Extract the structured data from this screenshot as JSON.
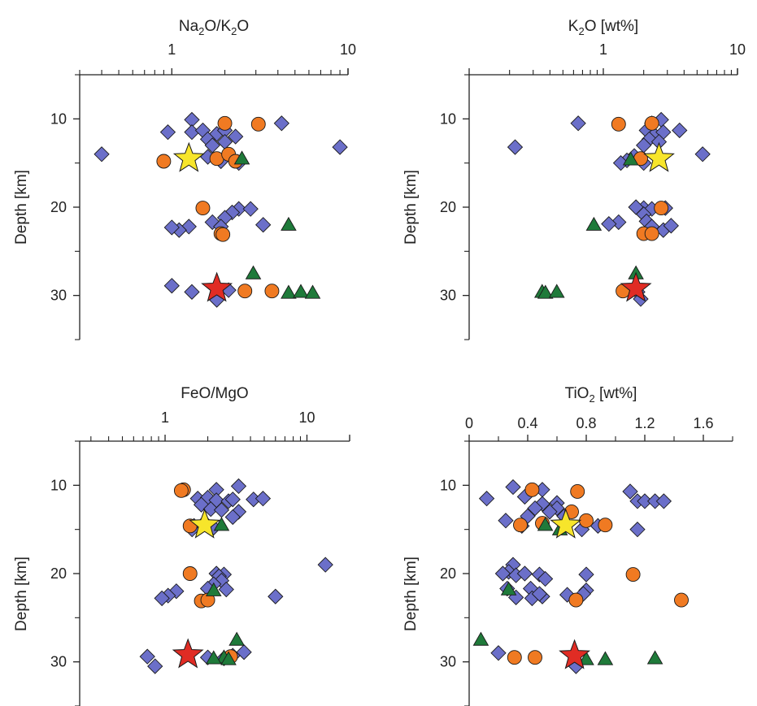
{
  "colors": {
    "diamond": "#6b6fc9",
    "circle": "#f07a22",
    "triangle": "#1f7a3a",
    "star_yellow": "#f7e52b",
    "star_red": "#e02c24",
    "outline": "#1a1a1a"
  },
  "chart_data": [
    {
      "type": "scatter",
      "title": {
        "pre": "Na",
        "sub1": "2",
        "mid": "O/K",
        "sub2": "2",
        "post": "O"
      },
      "ylabel": "Depth [km]",
      "xscale": "log",
      "xlim": [
        0.3,
        10
      ],
      "ylim": [
        35,
        5
      ],
      "xticks": [
        1,
        10
      ],
      "xtick_labels": [
        "1",
        "10"
      ],
      "yticks": [
        10,
        20,
        30
      ],
      "ytick_labels": [
        "10",
        "20",
        "30"
      ],
      "series": [
        {
          "marker": "diamond",
          "points": [
            [
              1.3,
              10.1
            ],
            [
              0.95,
              11.5
            ],
            [
              1.3,
              11.5
            ],
            [
              1.5,
              11.3
            ],
            [
              1.8,
              11.7
            ],
            [
              2.0,
              11.3
            ],
            [
              1.6,
              12.3
            ],
            [
              1.7,
              13
            ],
            [
              2.0,
              12.6
            ],
            [
              2.3,
              12
            ],
            [
              4.2,
              10.5
            ],
            [
              9.0,
              13.2
            ],
            [
              0.4,
              14
            ],
            [
              1.6,
              14.3
            ],
            [
              1.9,
              14.8
            ],
            [
              2.4,
              15
            ],
            [
              2.4,
              20.2
            ],
            [
              2.8,
              20.2
            ],
            [
              2.2,
              20.6
            ],
            [
              2.0,
              21.2
            ],
            [
              1.7,
              21.7
            ],
            [
              1.9,
              22.2
            ],
            [
              1.25,
              22.2
            ],
            [
              1.1,
              22.6
            ],
            [
              1.0,
              22.3
            ],
            [
              3.3,
              22
            ],
            [
              1.0,
              28.9
            ],
            [
              1.3,
              29.6
            ],
            [
              2.1,
              29.4
            ],
            [
              1.8,
              30.5
            ]
          ]
        },
        {
          "marker": "circle",
          "points": [
            [
              2.0,
              10.5
            ],
            [
              3.1,
              10.6
            ],
            [
              0.9,
              14.8
            ],
            [
              1.8,
              14.5
            ],
            [
              2.1,
              14
            ],
            [
              2.3,
              14.8
            ],
            [
              1.5,
              20.1
            ],
            [
              1.9,
              23
            ],
            [
              1.95,
              23.1
            ],
            [
              2.6,
              29.5
            ],
            [
              3.7,
              29.5
            ]
          ]
        },
        {
          "marker": "triangle",
          "points": [
            [
              2.5,
              14.5
            ],
            [
              4.6,
              22
            ],
            [
              2.9,
              27.5
            ],
            [
              4.6,
              29.7
            ],
            [
              5.4,
              29.6
            ],
            [
              6.3,
              29.7
            ]
          ]
        },
        {
          "marker": "star-yellow",
          "points": [
            [
              1.25,
              14.5
            ]
          ]
        },
        {
          "marker": "star-red",
          "points": [
            [
              1.8,
              29.2
            ]
          ]
        }
      ]
    },
    {
      "type": "scatter",
      "title": {
        "pre": "K",
        "sub1": "2",
        "mid": "O [wt%]",
        "sub2": "",
        "post": ""
      },
      "ylabel": "Depth [km]",
      "xscale": "log",
      "xlim": [
        0.1,
        10
      ],
      "ylim": [
        35,
        5
      ],
      "xticks": [
        1,
        10
      ],
      "xtick_labels": [
        "1",
        "10"
      ],
      "yticks": [
        10,
        20,
        30
      ],
      "ytick_labels": [
        "10",
        "20",
        "30"
      ],
      "series": [
        {
          "marker": "diamond",
          "points": [
            [
              0.65,
              10.5
            ],
            [
              2.3,
              10.5
            ],
            [
              2.7,
              10.1
            ],
            [
              2.1,
              11.3
            ],
            [
              2.4,
              11.8
            ],
            [
              2.8,
              11.5
            ],
            [
              3.7,
              11.3
            ],
            [
              2.2,
              12.3
            ],
            [
              2.6,
              12.6
            ],
            [
              2.0,
              13
            ],
            [
              0.22,
              13.2
            ],
            [
              5.5,
              14
            ],
            [
              1.7,
              14.2
            ],
            [
              1.5,
              14.7
            ],
            [
              1.35,
              15
            ],
            [
              2.0,
              15
            ],
            [
              2.0,
              20.1
            ],
            [
              1.75,
              20
            ],
            [
              2.3,
              20.2
            ],
            [
              2.9,
              20.1
            ],
            [
              2.0,
              20.8
            ],
            [
              2.1,
              21.6
            ],
            [
              2.3,
              22.2
            ],
            [
              2.8,
              22.6
            ],
            [
              3.2,
              22.1
            ],
            [
              1.3,
              21.7
            ],
            [
              1.1,
              21.9
            ],
            [
              1.8,
              29.6
            ],
            [
              1.9,
              30.4
            ]
          ]
        },
        {
          "marker": "circle",
          "points": [
            [
              1.3,
              10.6
            ],
            [
              2.3,
              10.5
            ],
            [
              1.9,
              14.5
            ],
            [
              2.7,
              20.1
            ],
            [
              2.0,
              23
            ],
            [
              2.3,
              23
            ],
            [
              1.4,
              29.5
            ]
          ]
        },
        {
          "marker": "triangle",
          "points": [
            [
              1.6,
              14.6
            ],
            [
              0.85,
              22
            ],
            [
              1.75,
              27.5
            ],
            [
              0.35,
              29.6
            ],
            [
              0.37,
              29.7
            ],
            [
              0.45,
              29.6
            ]
          ]
        },
        {
          "marker": "star-yellow",
          "points": [
            [
              2.6,
              14.5
            ]
          ]
        },
        {
          "marker": "star-red",
          "points": [
            [
              1.75,
              29.2
            ]
          ]
        }
      ]
    },
    {
      "type": "scatter",
      "title": {
        "pre": "FeO/MgO",
        "sub1": "",
        "mid": "",
        "sub2": "",
        "post": ""
      },
      "ylabel": "Depth [km]",
      "xscale": "log",
      "xlim": [
        0.25,
        20
      ],
      "ylim": [
        35,
        5
      ],
      "xticks": [
        1,
        10
      ],
      "xtick_labels": [
        "1",
        "10"
      ],
      "yticks": [
        10,
        20,
        30
      ],
      "ytick_labels": [
        "10",
        "20",
        "30"
      ],
      "series": [
        {
          "marker": "diamond",
          "points": [
            [
              2.3,
              10.5
            ],
            [
              3.3,
              10.1
            ],
            [
              1.7,
              11.5
            ],
            [
              2.0,
              11.4
            ],
            [
              2.3,
              11.7
            ],
            [
              2.8,
              11.8
            ],
            [
              3.0,
              11.6
            ],
            [
              4.2,
              11.6
            ],
            [
              4.9,
              11.5
            ],
            [
              1.8,
              12.2
            ],
            [
              2.1,
              12.7
            ],
            [
              2.5,
              12.8
            ],
            [
              3.3,
              13
            ],
            [
              3.0,
              13.6
            ],
            [
              1.9,
              14.2
            ],
            [
              1.6,
              14.6
            ],
            [
              2.2,
              14.8
            ],
            [
              1.55,
              15
            ],
            [
              2.3,
              20
            ],
            [
              2.6,
              20.1
            ],
            [
              2.4,
              20.3
            ],
            [
              2.5,
              20.8
            ],
            [
              2.2,
              21.2
            ],
            [
              2.0,
              21.7
            ],
            [
              2.7,
              21.8
            ],
            [
              1.2,
              22
            ],
            [
              1.05,
              22.5
            ],
            [
              0.95,
              22.8
            ],
            [
              6.0,
              22.6
            ],
            [
              13.5,
              19
            ],
            [
              0.75,
              29.4
            ],
            [
              0.85,
              30.5
            ],
            [
              2.0,
              29.5
            ],
            [
              2.6,
              29.6
            ],
            [
              3.6,
              28.9
            ],
            [
              3.0,
              29.3
            ]
          ]
        },
        {
          "marker": "circle",
          "points": [
            [
              1.35,
              10.5
            ],
            [
              1.3,
              10.6
            ],
            [
              1.5,
              14.6
            ],
            [
              1.5,
              20
            ],
            [
              1.8,
              23.1
            ],
            [
              2.0,
              23
            ],
            [
              2.9,
              29.4
            ]
          ]
        },
        {
          "marker": "triangle",
          "points": [
            [
              2.5,
              14.5
            ],
            [
              2.2,
              21.9
            ],
            [
              3.2,
              27.5
            ],
            [
              2.6,
              29.5
            ],
            [
              2.2,
              29.6
            ],
            [
              2.8,
              29.7
            ]
          ]
        },
        {
          "marker": "star-yellow",
          "points": [
            [
              1.9,
              14.5
            ]
          ]
        },
        {
          "marker": "star-red",
          "points": [
            [
              1.45,
              29.2
            ]
          ]
        }
      ]
    },
    {
      "type": "scatter",
      "title": {
        "pre": "TiO",
        "sub1": "2",
        "mid": " [wt%]",
        "sub2": "",
        "post": ""
      },
      "ylabel": "Depth [km]",
      "xscale": "linear",
      "xlim": [
        0,
        1.8
      ],
      "ylim": [
        35,
        5
      ],
      "xticks": [
        0,
        0.4,
        0.8,
        1.2,
        1.6
      ],
      "xtick_labels": [
        "0",
        "0.4",
        "0.8",
        "1.2",
        "1.6"
      ],
      "yticks": [
        10,
        20,
        30
      ],
      "ytick_labels": [
        "10",
        "20",
        "30"
      ],
      "series": [
        {
          "marker": "diamond",
          "points": [
            [
              0.3,
              10.2
            ],
            [
              0.5,
              10.5
            ],
            [
              0.12,
              11.5
            ],
            [
              0.38,
              11.3
            ],
            [
              0.5,
              12.1
            ],
            [
              0.45,
              12.6
            ],
            [
              0.6,
              12
            ],
            [
              1.1,
              10.7
            ],
            [
              1.15,
              11.8
            ],
            [
              1.2,
              11.8
            ],
            [
              1.27,
              11.8
            ],
            [
              1.33,
              11.8
            ],
            [
              0.6,
              12.6
            ],
            [
              0.55,
              13
            ],
            [
              0.65,
              13.5
            ],
            [
              0.4,
              13.5
            ],
            [
              0.25,
              14
            ],
            [
              0.36,
              14.6
            ],
            [
              0.77,
              15
            ],
            [
              0.88,
              14.6
            ],
            [
              1.15,
              15
            ],
            [
              0.3,
              19
            ],
            [
              0.27,
              19.8
            ],
            [
              0.23,
              20
            ],
            [
              0.32,
              20.2
            ],
            [
              0.38,
              20
            ],
            [
              0.48,
              20.1
            ],
            [
              0.52,
              20.6
            ],
            [
              0.42,
              21.7
            ],
            [
              0.26,
              21.7
            ],
            [
              0.8,
              20.1
            ],
            [
              0.8,
              21.9
            ],
            [
              0.78,
              22.3
            ],
            [
              0.5,
              22.6
            ],
            [
              0.43,
              22.8
            ],
            [
              0.48,
              22.3
            ],
            [
              0.32,
              22.7
            ],
            [
              0.67,
              22.4
            ],
            [
              0.2,
              29
            ],
            [
              0.73,
              30.5
            ]
          ]
        },
        {
          "marker": "circle",
          "points": [
            [
              0.43,
              10.5
            ],
            [
              0.74,
              10.7
            ],
            [
              0.35,
              14.5
            ],
            [
              0.5,
              14.3
            ],
            [
              0.7,
              13
            ],
            [
              0.8,
              14
            ],
            [
              0.93,
              14.5
            ],
            [
              1.12,
              20.1
            ],
            [
              0.73,
              23
            ],
            [
              1.45,
              23
            ],
            [
              0.31,
              29.5
            ],
            [
              0.45,
              29.5
            ]
          ]
        },
        {
          "marker": "triangle",
          "points": [
            [
              0.27,
              21.8
            ],
            [
              0.52,
              14.5
            ],
            [
              0.08,
              27.5
            ],
            [
              0.62,
              15
            ],
            [
              0.8,
              29.7
            ],
            [
              0.93,
              29.7
            ],
            [
              1.27,
              29.6
            ]
          ]
        },
        {
          "marker": "star-yellow",
          "points": [
            [
              0.66,
              14.5
            ]
          ]
        },
        {
          "marker": "star-red",
          "points": [
            [
              0.72,
              29.3
            ]
          ]
        }
      ]
    }
  ]
}
